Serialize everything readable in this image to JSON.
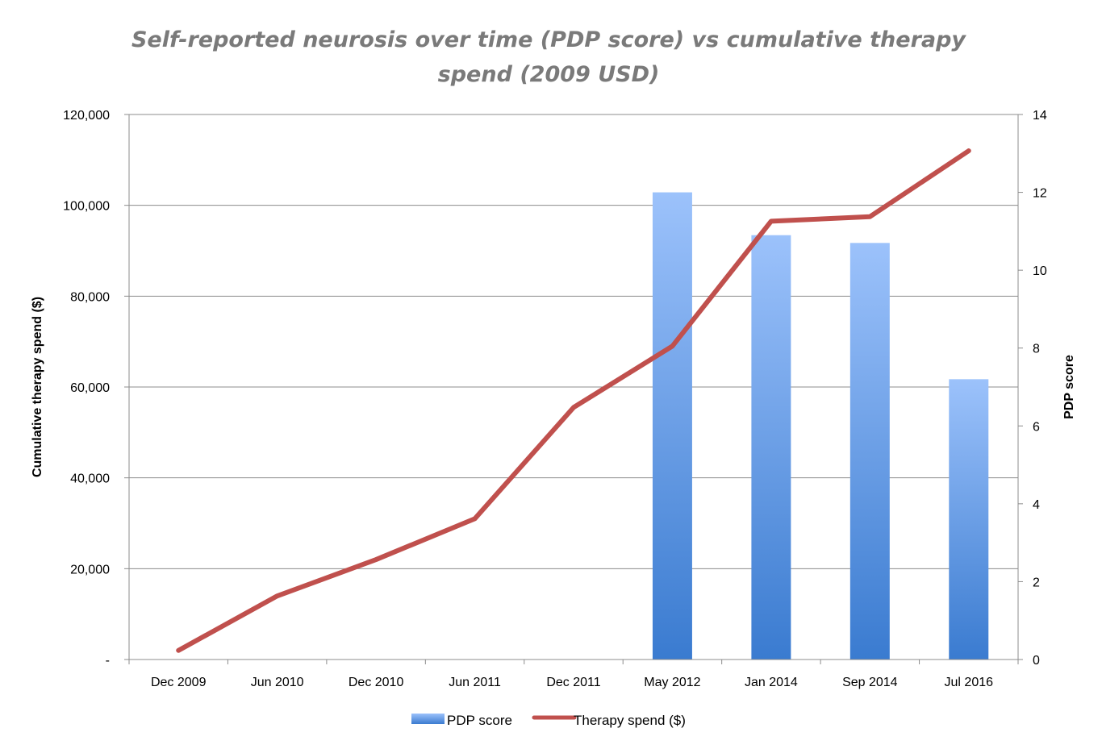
{
  "chart_data": {
    "type": "bar",
    "title_lines": [
      "Self-reported neurosis over time (PDP score) vs cumulative therapy",
      "spend (2009 USD)"
    ],
    "categories": [
      "Dec 2009",
      "Jun 2010",
      "Dec 2010",
      "Jun 2011",
      "Dec 2011",
      "May 2012",
      "Jan 2014",
      "Sep 2014",
      "Jul 2016"
    ],
    "y_left": {
      "label": "Cumulative therapy spend ($)",
      "ylim": [
        0,
        120000
      ],
      "tick_labels": [
        "-",
        "20,000",
        "40,000",
        "60,000",
        "80,000",
        "100,000",
        "120,000"
      ]
    },
    "y_right": {
      "label": "PDP score",
      "ylim": [
        0,
        14
      ],
      "tick_labels": [
        "0",
        "2",
        "4",
        "6",
        "8",
        "10",
        "12",
        "14"
      ]
    },
    "series": [
      {
        "name": "PDP score",
        "type": "bar",
        "axis": "right",
        "color": "#5b8fd9",
        "values": [
          null,
          null,
          null,
          null,
          null,
          12.0,
          10.9,
          10.7,
          7.2
        ]
      },
      {
        "name": "Therapy spend ($)",
        "type": "line",
        "axis": "left",
        "color": "#c0504d",
        "values": [
          2000,
          14000,
          22000,
          31000,
          55500,
          69000,
          96500,
          97500,
          112000
        ]
      }
    ],
    "grid": true,
    "legend_position": "bottom"
  }
}
